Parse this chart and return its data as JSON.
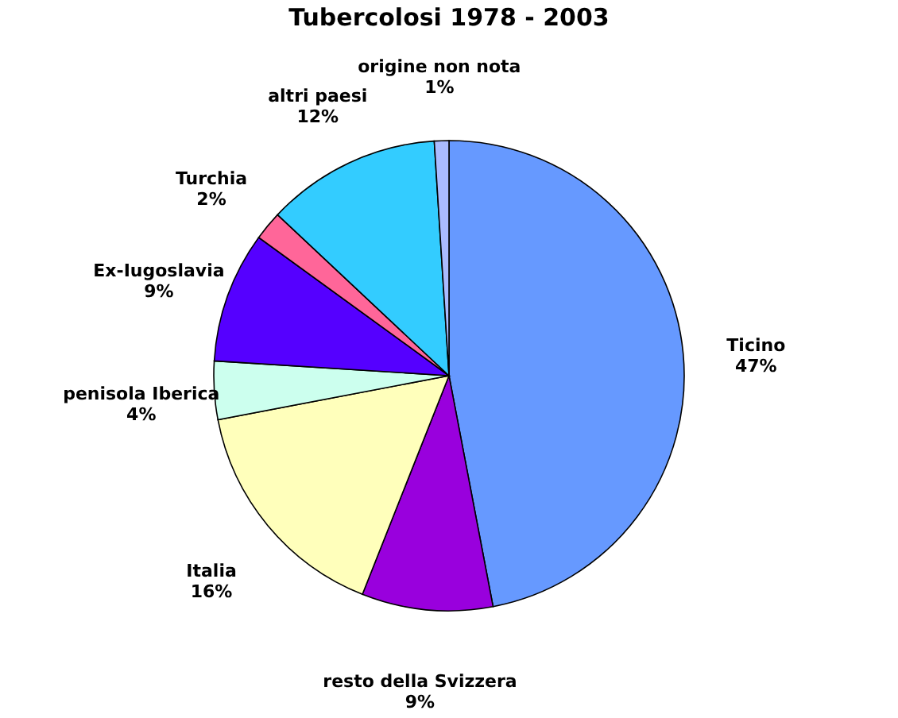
{
  "chart_data": {
    "type": "pie",
    "title": "Tubercolosi  1978 - 2003",
    "categories": [
      "Ticino",
      "resto della Svizzera",
      "Italia",
      "penisola Iberica",
      "Ex-Iugoslavia",
      "Turchia",
      "altri paesi",
      "origine non nota"
    ],
    "values": [
      47,
      9,
      16,
      4,
      9,
      2,
      12,
      1
    ],
    "value_labels": [
      "47%",
      "9%",
      "16%",
      "4%",
      "9%",
      "2%",
      "12%",
      "1%"
    ],
    "colors": [
      "#6699ff",
      "#9900dd",
      "#ffffbb",
      "#ccffee",
      "#5500ff",
      "#ff6699",
      "#33ccff",
      "#aabbff"
    ],
    "legend": false
  }
}
